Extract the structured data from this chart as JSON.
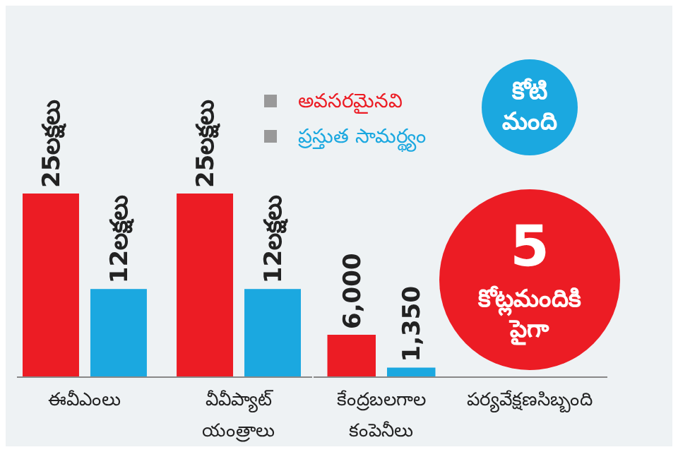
{
  "chart_data": [
    {
      "type": "bar",
      "categories": [
        "ఈవీఎంలు",
        "వీవీప్యాట్ యంత్రాలు"
      ],
      "tick_labels": "x",
      "legend": "top right",
      "series": [
        {
          "name": "అవసరమైనవి",
          "color": "#ec1c24",
          "values": [
            25,
            25
          ],
          "value_labels": [
            "25లక్షలు",
            "25లక్షలు"
          ]
        },
        {
          "name": "ప్రస్తుత సామర్థ్యం",
          "color": "#1ba8e0",
          "values": [
            12,
            12
          ],
          "value_labels": [
            "12లక్షలు",
            "12లక్షలు"
          ]
        }
      ]
    },
    {
      "type": "bar",
      "categories": [
        "కేంద్రబలగాల కంపెనీలు"
      ],
      "tick_labels": "x",
      "series": [
        {
          "color": "#ec1c24",
          "values": [
            6000
          ],
          "value_labels": [
            "6,000"
          ]
        },
        {
          "color": "#1ba8e0",
          "values": [
            1350
          ],
          "value_labels": [
            "1,350"
          ]
        }
      ]
    },
    {
      "type": "other",
      "categories": [
        "పర్యవేక్షణసిబ్బంది"
      ],
      "annotations": [
        "కోటి మంది",
        "5 కోట్లమందికి పైగా"
      ]
    }
  ]
}
